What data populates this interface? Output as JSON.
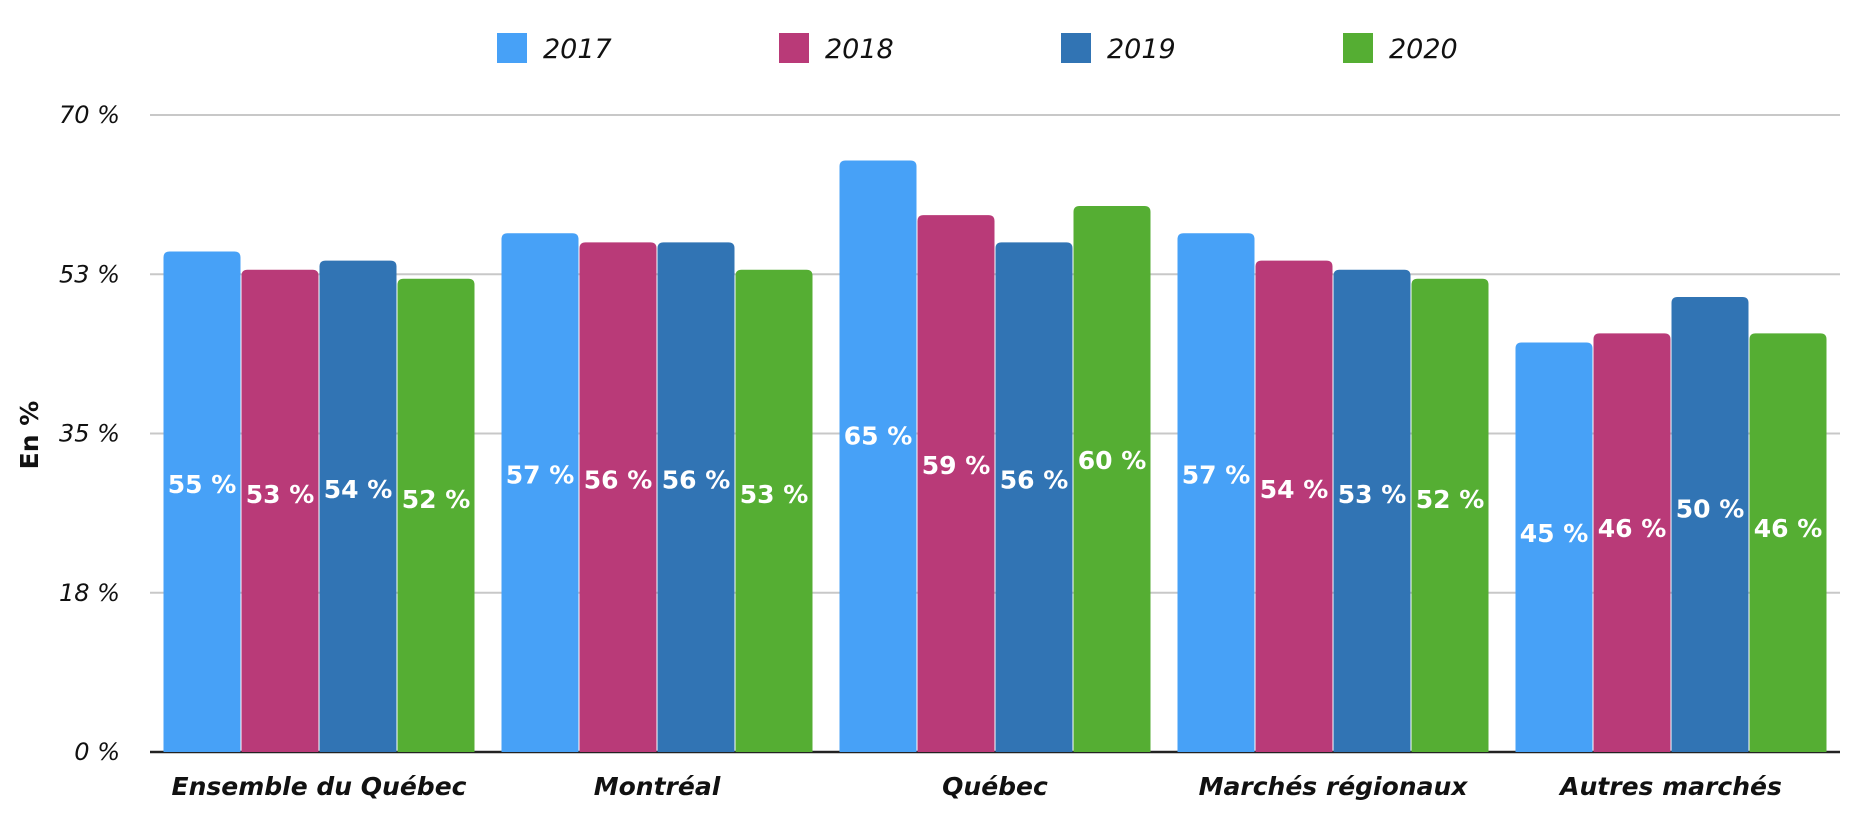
{
  "chart_data": {
    "type": "bar",
    "title": "",
    "xlabel": "",
    "ylabel": "En %",
    "ylim": [
      0,
      70
    ],
    "yticks": [
      {
        "value": 0,
        "label": "0 %"
      },
      {
        "value": 17.5,
        "label": "18 %"
      },
      {
        "value": 35,
        "label": "35 %"
      },
      {
        "value": 52.5,
        "label": "53 %"
      },
      {
        "value": 70,
        "label": "70 %"
      }
    ],
    "grid": true,
    "legend_position": "top",
    "categories": [
      "Ensemble du Québec",
      "Montréal",
      "Québec",
      "Marchés régionaux",
      "Autres marchés"
    ],
    "series": [
      {
        "name": "2017",
        "color": "#47A1F7",
        "values": [
          55,
          57,
          65,
          57,
          45
        ],
        "labels": [
          "55 %",
          "57 %",
          "65 %",
          "57 %",
          "45 %"
        ]
      },
      {
        "name": "2018",
        "color": "#B93A78",
        "values": [
          53,
          56,
          59,
          54,
          46
        ],
        "labels": [
          "53 %",
          "56 %",
          "59 %",
          "54 %",
          "46 %"
        ]
      },
      {
        "name": "2019",
        "color": "#3174B4",
        "values": [
          54,
          56,
          56,
          53,
          50
        ],
        "labels": [
          "54 %",
          "56 %",
          "56 %",
          "53 %",
          "50 %"
        ]
      },
      {
        "name": "2020",
        "color": "#55AE33",
        "values": [
          52,
          53,
          60,
          52,
          46
        ],
        "labels": [
          "52 %",
          "53 %",
          "60 %",
          "52 %",
          "46 %"
        ]
      }
    ]
  }
}
